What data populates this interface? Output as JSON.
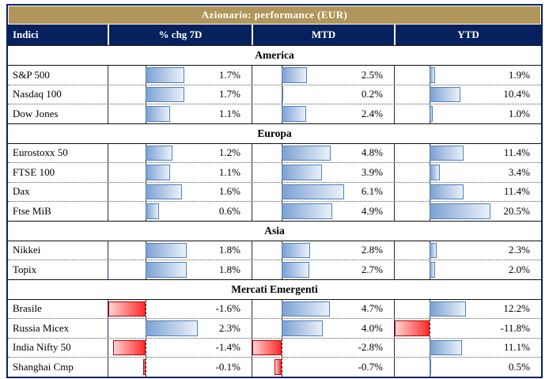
{
  "title": "Azionario: performance (EUR)",
  "colors": {
    "title_bg": "#B0965A",
    "header_bg": "#07215F",
    "header_text": "#FFFFFF",
    "border": "#07215F",
    "bar_positive_border": "#4F81BD",
    "bar_positive_fill_start": "#7DA1D3",
    "bar_positive_fill_end": "#EAF1F9",
    "bar_negative_border": "#C00000",
    "bar_negative_fill_start": "#FF2B2B",
    "bar_negative_fill_end": "#FFD3D3"
  },
  "chart_data": {
    "type": "table",
    "title": "Azionario: performance (EUR)",
    "columns": [
      "Indici",
      "% chg 7D",
      "MTD",
      "YTD"
    ],
    "unit": "percent",
    "value_format": "one decimal place with % suffix",
    "bar_style": "excel-style data bars: blue gradient for positive, red gradient for negative, dashed vertical zero axis per column",
    "sections": [
      {
        "name": "America",
        "rows": [
          {
            "index": "S&P 500",
            "values": [
              1.7,
              2.5,
              1.9
            ]
          },
          {
            "index": "Nasdaq 100",
            "values": [
              1.7,
              0.2,
              10.4
            ]
          },
          {
            "index": "Dow Jones",
            "values": [
              1.1,
              2.4,
              1.0
            ]
          }
        ]
      },
      {
        "name": "Europa",
        "rows": [
          {
            "index": "Eurostoxx 50",
            "values": [
              1.2,
              4.8,
              11.4
            ]
          },
          {
            "index": "FTSE 100",
            "values": [
              1.1,
              3.9,
              3.4
            ]
          },
          {
            "index": "Dax",
            "values": [
              1.6,
              6.1,
              11.4
            ]
          },
          {
            "index": "Ftse MiB",
            "values": [
              0.6,
              4.9,
              20.5
            ]
          }
        ]
      },
      {
        "name": "Asia",
        "rows": [
          {
            "index": "Nikkei",
            "values": [
              1.8,
              2.8,
              2.3
            ]
          },
          {
            "index": "Topix",
            "values": [
              1.8,
              2.7,
              2.0
            ]
          }
        ]
      },
      {
        "name": "Mercati Emergenti",
        "rows": [
          {
            "index": "Brasile",
            "values": [
              -1.6,
              4.7,
              12.2
            ]
          },
          {
            "index": "Russia Micex",
            "values": [
              2.3,
              4.0,
              -11.8
            ]
          },
          {
            "index": "India Nifty 50",
            "values": [
              -1.4,
              -2.8,
              11.1
            ]
          },
          {
            "index": "Shanghai Cmp",
            "values": [
              -0.1,
              -0.7,
              0.5
            ]
          }
        ]
      }
    ]
  }
}
